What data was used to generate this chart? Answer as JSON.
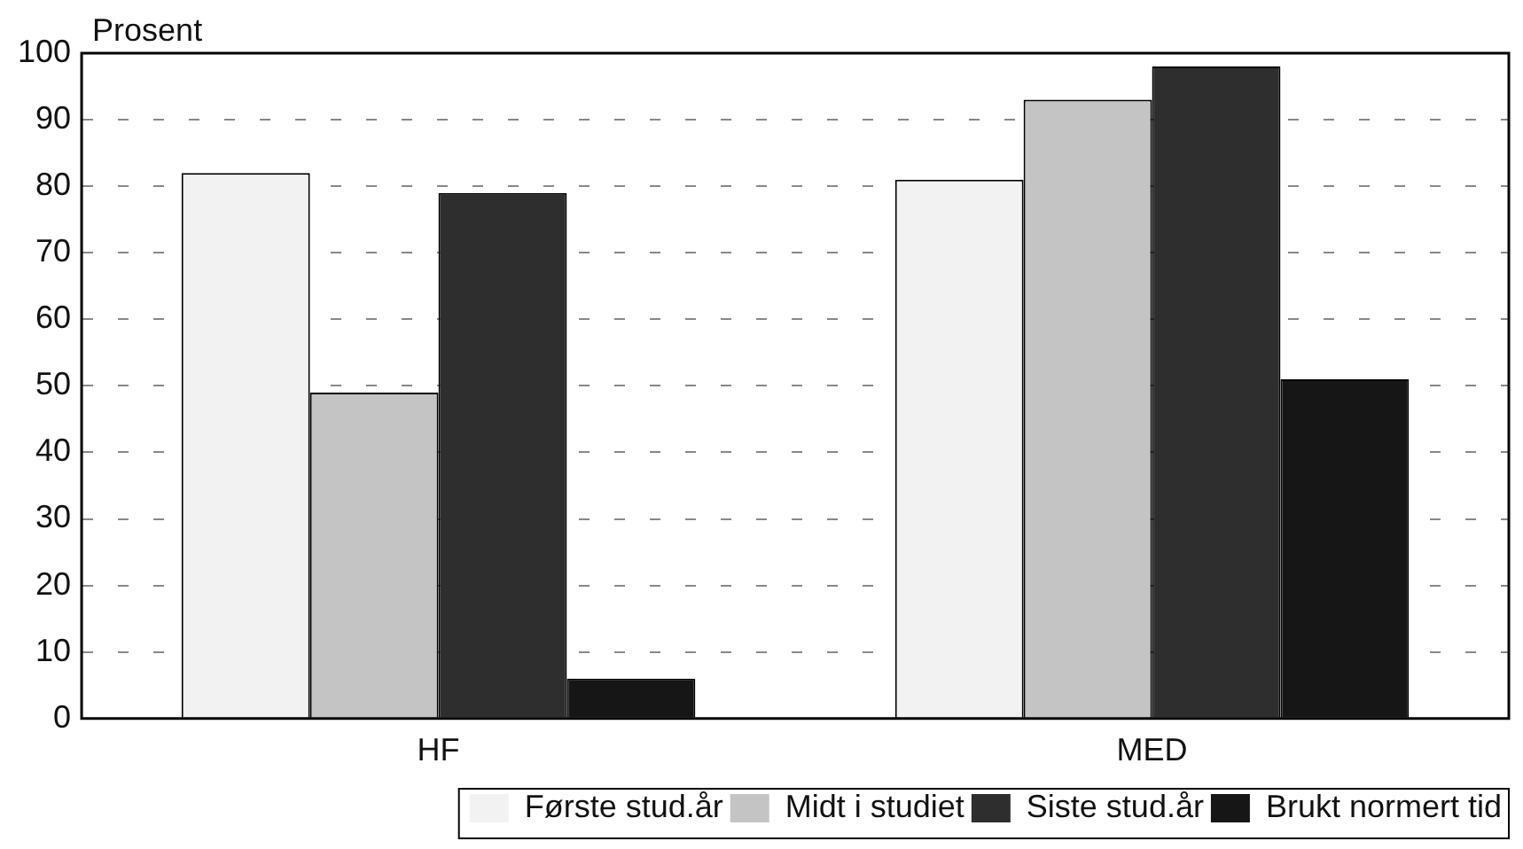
{
  "chart_data": {
    "type": "bar",
    "ylabel": "Prosent",
    "categories": [
      "HF",
      "MED"
    ],
    "series": [
      {
        "name": "Første stud.år",
        "color": "#f2f2f2",
        "values": [
          82,
          81
        ]
      },
      {
        "name": "Midt i studiet",
        "color": "#c4c4c4",
        "values": [
          49,
          93
        ]
      },
      {
        "name": "Siste stud.år",
        "color": "#2e2e2e",
        "values": [
          79,
          98
        ]
      },
      {
        "name": "Brukt normert tid",
        "color": "#161616",
        "values": [
          6,
          51
        ]
      }
    ],
    "ylim": [
      0,
      100
    ],
    "yticks": [
      0,
      10,
      20,
      30,
      40,
      50,
      60,
      70,
      80,
      90,
      100
    ],
    "grid": "y",
    "legend": "bottom"
  }
}
